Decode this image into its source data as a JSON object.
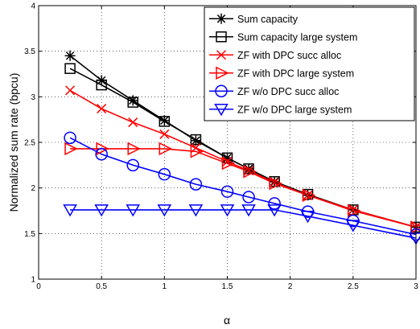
{
  "chart_data": {
    "type": "line",
    "title": "",
    "xlabel": "α",
    "ylabel": "Normalized sum rate (bpcu)",
    "xlim": [
      0,
      3
    ],
    "ylim": [
      1,
      4
    ],
    "xticks": [
      "0",
      "0.5",
      "1",
      "1.5",
      "2",
      "2.5",
      "3"
    ],
    "yticks": [
      "1",
      "1.5",
      "2",
      "2.5",
      "3",
      "3.5",
      "4"
    ],
    "grid": true,
    "legend_position": "top-right",
    "series": [
      {
        "name": "Sum capacity",
        "color": "#000000",
        "marker": "asterisk",
        "x": [
          0.25,
          0.5,
          0.75,
          1.0,
          1.25,
          1.5,
          1.67,
          1.875,
          2.14,
          2.5,
          3.0
        ],
        "y": [
          3.45,
          3.18,
          2.96,
          2.74,
          2.52,
          2.33,
          2.21,
          2.07,
          1.92,
          1.76,
          1.57
        ]
      },
      {
        "name": "Sum capacity large system",
        "color": "#000000",
        "marker": "square",
        "x": [
          0.25,
          0.5,
          0.75,
          1.0,
          1.25,
          1.5,
          1.67,
          1.875,
          2.14,
          2.5,
          3.0
        ],
        "y": [
          3.31,
          3.13,
          2.94,
          2.73,
          2.53,
          2.33,
          2.21,
          2.07,
          1.93,
          1.76,
          1.57
        ]
      },
      {
        "name": "ZF with DPC succ alloc",
        "color": "#ff0000",
        "marker": "x",
        "x": [
          0.25,
          0.5,
          0.75,
          1.0,
          1.25,
          1.5,
          1.67,
          1.875,
          2.14,
          2.5,
          3.0
        ],
        "y": [
          3.07,
          2.87,
          2.72,
          2.59,
          2.44,
          2.29,
          2.19,
          2.06,
          1.92,
          1.76,
          1.57
        ]
      },
      {
        "name": "ZF with DPC large system",
        "color": "#ff0000",
        "marker": "triangle-right",
        "x": [
          0.25,
          0.5,
          0.75,
          1.0,
          1.25,
          1.5,
          1.67,
          1.875,
          2.14,
          2.5,
          3.0
        ],
        "y": [
          2.43,
          2.43,
          2.43,
          2.43,
          2.4,
          2.27,
          2.18,
          2.05,
          1.92,
          1.75,
          1.57
        ]
      },
      {
        "name": "ZF w/o DPC succ alloc",
        "color": "#0000ff",
        "marker": "circle",
        "x": [
          0.25,
          0.5,
          0.75,
          1.0,
          1.25,
          1.5,
          1.67,
          1.875,
          2.14,
          2.5,
          3.0
        ],
        "y": [
          2.55,
          2.37,
          2.25,
          2.15,
          2.04,
          1.96,
          1.9,
          1.83,
          1.74,
          1.64,
          1.49
        ]
      },
      {
        "name": "ZF w/o DPC large system",
        "color": "#0000ff",
        "marker": "triangle-down",
        "x": [
          0.25,
          0.5,
          0.75,
          1.0,
          1.25,
          1.5,
          1.67,
          1.875,
          2.14,
          2.5,
          3.0
        ],
        "y": [
          1.76,
          1.76,
          1.76,
          1.76,
          1.76,
          1.76,
          1.76,
          1.76,
          1.69,
          1.59,
          1.45
        ]
      }
    ]
  }
}
